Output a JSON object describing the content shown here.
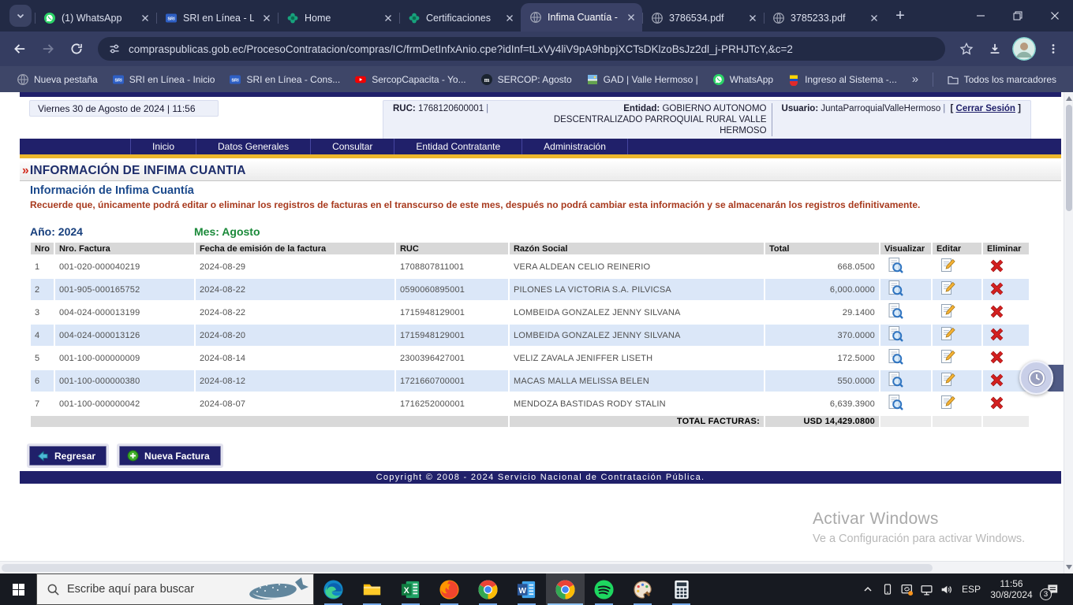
{
  "browser": {
    "new_tab_button": "+",
    "tabs": [
      {
        "label": "(1) WhatsApp",
        "icon": "whatsapp",
        "active": false
      },
      {
        "label": "SRI en Línea - Lo",
        "icon": "sri",
        "active": false
      },
      {
        "label": "Home",
        "icon": "sercop",
        "active": false
      },
      {
        "label": "Certificaciones",
        "icon": "sercop",
        "active": false
      },
      {
        "label": "Infima Cuantía -",
        "icon": "globe",
        "active": true
      },
      {
        "label": "3786534.pdf",
        "icon": "globe",
        "active": false
      },
      {
        "label": "3785233.pdf",
        "icon": "globe",
        "active": false
      }
    ],
    "url": "compraspublicas.gob.ec/ProcesoContratacion/compras/IC/frmDetInfxAnio.cpe?idInf=tLxVy4liV9pA9hbpjXCTsDKlzoBsJz2dl_j-PRHJTcY,&c=2",
    "bookmarks": [
      {
        "label": "Nueva pestaña",
        "icon": "globe"
      },
      {
        "label": "SRI en Línea - Inicio",
        "icon": "sri"
      },
      {
        "label": "SRI en Línea - Cons...",
        "icon": "sri"
      },
      {
        "label": "SercopCapacita - Yo...",
        "icon": "youtube"
      },
      {
        "label": "SERCOP: Agosto",
        "icon": "mcircle"
      },
      {
        "label": "GAD | Valle Hermoso |",
        "icon": "gad"
      },
      {
        "label": "WhatsApp",
        "icon": "whatsapp"
      },
      {
        "label": "Ingreso al Sistema -...",
        "icon": "ecuador"
      }
    ],
    "bookmarks_overflow": "»",
    "all_bookmarks_label": "Todos los marcadores"
  },
  "page": {
    "datetime": "Viernes 30 de Agosto de 2024 | 11:56",
    "ruc_label": "RUC:",
    "ruc": "1768120600001",
    "entity_label": "Entidad:",
    "entity": "GOBIERNO AUTONOMO DESCENTRALIZADO PARROQUIAL RURAL VALLE HERMOSO",
    "user_label": "Usuario:",
    "user": "JuntaParroquialValleHermoso",
    "logout_open": "[ ",
    "logout": "Cerrar Sesión",
    "logout_close": " ]",
    "menu": [
      "Inicio",
      "Datos Generales",
      "Consultar",
      "Entidad Contratante",
      "Administración"
    ],
    "breadcrumb_marker": "»",
    "breadcrumb": "INFORMACIÓN DE INFIMA CUANTIA",
    "title": "Información de Infima Cuantía",
    "warning": "Recuerde que, únicamente podrá editar o eliminar los registros de facturas en el transcurso de este mes, después no podrá cambiar esta información y se almacenarán los registros definitivamente.",
    "year_label": "Año:",
    "year": "2024",
    "month_label": "Mes:",
    "month": "Agosto",
    "table": {
      "headers": [
        "Nro",
        "Nro. Factura",
        "Fecha de emisión de la factura",
        "RUC",
        "Razón Social",
        "Total",
        "Visualizar",
        "Editar",
        "Eliminar"
      ],
      "rows": [
        {
          "nro": "1",
          "factura": "001-020-000040219",
          "fecha": "2024-08-29",
          "ruc": "1708807811001",
          "razon": "VERA ALDEAN CELIO REINERIO",
          "total": "668.0500"
        },
        {
          "nro": "2",
          "factura": "001-905-000165752",
          "fecha": "2024-08-22",
          "ruc": "0590060895001",
          "razon": "PILONES LA VICTORIA S.A. PILVICSA",
          "total": "6,000.0000"
        },
        {
          "nro": "3",
          "factura": "004-024-000013199",
          "fecha": "2024-08-22",
          "ruc": "1715948129001",
          "razon": "LOMBEIDA GONZALEZ JENNY SILVANA",
          "total": "29.1400"
        },
        {
          "nro": "4",
          "factura": "004-024-000013126",
          "fecha": "2024-08-20",
          "ruc": "1715948129001",
          "razon": "LOMBEIDA GONZALEZ JENNY SILVANA",
          "total": "370.0000"
        },
        {
          "nro": "5",
          "factura": "001-100-000000009",
          "fecha": "2024-08-14",
          "ruc": "2300396427001",
          "razon": "VELIZ ZAVALA JENIFFER LISETH",
          "total": "172.5000"
        },
        {
          "nro": "6",
          "factura": "001-100-000000380",
          "fecha": "2024-08-12",
          "ruc": "1721660700001",
          "razon": "MACAS MALLA MELISSA BELEN",
          "total": "550.0000"
        },
        {
          "nro": "7",
          "factura": "001-100-000000042",
          "fecha": "2024-08-07",
          "ruc": "1716252000001",
          "razon": "MENDOZA BASTIDAS RODY STALIN",
          "total": "6,639.3900"
        }
      ],
      "total_label": "TOTAL FACTURAS:",
      "total_value": "USD 14,429.0800"
    },
    "buttons": {
      "back": "Regresar",
      "new": "Nueva Factura"
    },
    "copyright": "Copyright © 2008 - 2024 Servicio Nacional de Contratación Pública.",
    "watermark_line1": "Activar Windows",
    "watermark_line2": "Ve a Configuración para activar Windows."
  },
  "taskbar": {
    "search_placeholder": "Escribe aquí para buscar",
    "apps": [
      {
        "icon": "edge",
        "running": true,
        "active": false
      },
      {
        "icon": "explorer",
        "running": true,
        "active": false
      },
      {
        "icon": "excel",
        "running": true,
        "active": false
      },
      {
        "icon": "firefox",
        "running": true,
        "active": false
      },
      {
        "icon": "chrome",
        "running": true,
        "active": false
      },
      {
        "icon": "word",
        "running": true,
        "active": false
      },
      {
        "icon": "chrome",
        "running": true,
        "active": true
      },
      {
        "icon": "spotify",
        "running": true,
        "active": false
      },
      {
        "icon": "paint",
        "running": true,
        "active": false
      },
      {
        "icon": "calculator",
        "running": true,
        "active": false
      }
    ],
    "tray_icons": [
      "chevron-up",
      "tray-phone",
      "tray-cast",
      "tray-network",
      "tray-volume"
    ],
    "language": "ESP",
    "time": "11:56",
    "date": "30/8/2024",
    "notification_count": "3"
  }
}
